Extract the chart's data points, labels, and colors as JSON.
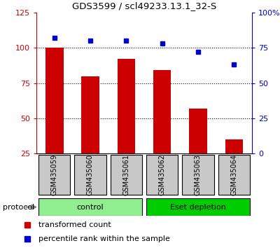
{
  "title": "GDS3599 / scl49233.13.1_32-S",
  "categories": [
    "GSM435059",
    "GSM435060",
    "GSM435061",
    "GSM435062",
    "GSM435063",
    "GSM435064"
  ],
  "red_values": [
    100,
    80,
    92,
    84,
    57,
    35
  ],
  "blue_values": [
    82,
    80,
    80,
    78,
    72,
    63
  ],
  "left_ylim": [
    25,
    125
  ],
  "left_yticks": [
    25,
    50,
    75,
    100,
    125
  ],
  "right_ylim": [
    0,
    100
  ],
  "right_yticks": [
    0,
    25,
    50,
    75,
    100
  ],
  "right_yticklabels": [
    "0",
    "25",
    "50",
    "75",
    "100%"
  ],
  "bar_color": "#cc0000",
  "dot_color": "#0000cc",
  "bar_bottom": 25,
  "groups": [
    {
      "label": "control",
      "indices": [
        0,
        1,
        2
      ],
      "color": "#90ee90"
    },
    {
      "label": "Eset depletion",
      "indices": [
        3,
        4,
        5
      ],
      "color": "#00cc00"
    }
  ],
  "protocol_label": "protocol",
  "legend_red": "transformed count",
  "legend_blue": "percentile rank within the sample",
  "dotted_lines": [
    100,
    75,
    50
  ],
  "background_color": "#ffffff",
  "label_area_color": "#c8c8c8"
}
